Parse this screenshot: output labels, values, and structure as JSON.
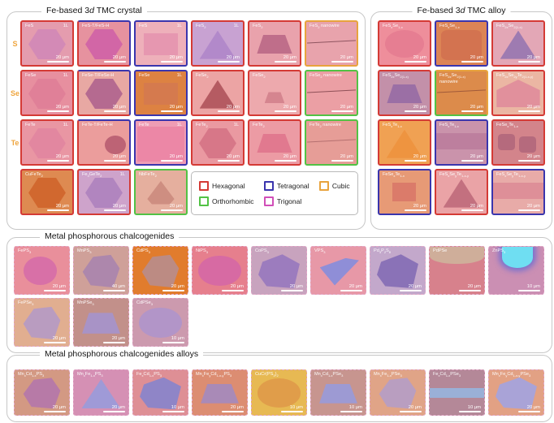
{
  "legend": {
    "items": [
      {
        "label": "Hexagonal",
        "color": "#d43a35"
      },
      {
        "label": "Tetragonal",
        "color": "#3a35ad"
      },
      {
        "label": "Cubic",
        "color": "#e8a33d"
      },
      {
        "label": "Orthorhombic",
        "color": "#52c245"
      },
      {
        "label": "Trigonal",
        "color": "#d14fb8"
      }
    ]
  },
  "panels": [
    {
      "id": "crystal",
      "title": "Fe-based 3*d* TMC crystal",
      "row_labels": [
        "S",
        "Se",
        "Te"
      ],
      "row_label_color": "#efa63f",
      "tiles": [
        {
          "label": "FeS",
          "layer_tag": "1L",
          "scale": "20 μm",
          "border": "hexagonal",
          "bg_color": "#e49cae",
          "flake_color": "#d38ab6",
          "flake_shape": "hexagon"
        },
        {
          "label": "FeS-T/FeS-H",
          "scale": "20 μm",
          "border": "tetra-hex",
          "bg_color": "#e6929f",
          "flake_color": "#d266a6",
          "flake_shape": "hexagon"
        },
        {
          "label": "FeS",
          "layer_tag": "1L",
          "scale": "20 μm",
          "border": "tetragonal",
          "bg_color": "#eeb0ba",
          "flake_color": "#e697b0",
          "flake_shape": "rect"
        },
        {
          "label": "FeS_{2}",
          "layer_tag": "1L",
          "scale": "20 μm",
          "border": "hexagonal",
          "bg_color": "#c8a2d2",
          "flake_color": "#b289ca",
          "flake_shape": "triangle"
        },
        {
          "label": "FeS_{2}",
          "scale": "20 μm",
          "border": "hexagonal",
          "bg_color": "#e9a2ac",
          "flake_color": "#bf6e8a",
          "flake_shape": "trapezoid"
        },
        {
          "label": "FeS_{2} nanowire",
          "scale": "20 μm",
          "border": "cubic",
          "bg_color": "#e8a3ac",
          "flake_color": "#8f5560",
          "flake_shape": "wire"
        },
        {
          "label": "FeSe",
          "layer_tag": "1L",
          "scale": "20 μm",
          "border": "hexagonal",
          "bg_color": "#e78f9f",
          "flake_color": "#e08098",
          "flake_shape": "hexagon"
        },
        {
          "label": "FeSe-T/FeSe-H",
          "scale": "20 μm",
          "border": "tetra-hex",
          "bg_color": "#e8a8a3",
          "flake_color": "#b56a90",
          "flake_shape": "hexagon"
        },
        {
          "label": "FeSe",
          "layer_tag": "1L",
          "scale": "20 μm",
          "border": "tetragonal",
          "bg_color": "#dd8242",
          "flake_color": "#d57a4e",
          "flake_shape": "rect"
        },
        {
          "label": "FeSe_{2}",
          "scale": "20 μm",
          "border": "hexagonal",
          "bg_color": "#eca4a4",
          "flake_color": "#b55b62",
          "flake_shape": "triangle"
        },
        {
          "label": "FeSe_{2}",
          "scale": "20 μm",
          "border": "hexagonal",
          "bg_color": "#eda9ad",
          "flake_color": "#d5858f",
          "flake_shape": "trapezoid-sm"
        },
        {
          "label": "FeSe_{2} nanowire",
          "scale": "20 μm",
          "border": "orthorhombic",
          "bg_color": "#eb9fa4",
          "flake_color": "#8f5058",
          "flake_shape": "wire"
        },
        {
          "label": "FeTe",
          "layer_tag": "1L",
          "scale": "20 μm",
          "border": "hexagonal",
          "bg_color": "#e996a3",
          "flake_color": "#e287a0",
          "flake_shape": "hexagon"
        },
        {
          "label": "FeTe-T/FeTe-H",
          "scale": "20 μm",
          "border": "tetra-hex",
          "bg_color": "#eb9d9c",
          "flake_color": "#bd6375",
          "flake_shape": "circle-right"
        },
        {
          "label": "FeTe",
          "layer_tag": "1L",
          "scale": "20 μm",
          "border": "tetragonal",
          "bg_color": "#ef9db4",
          "flake_color": "#ec87a6",
          "flake_shape": "rect-lg"
        },
        {
          "label": "FeTe_{2}",
          "layer_tag": "1L",
          "scale": "20 μm",
          "border": "hexagonal",
          "bg_color": "#ea99a1",
          "flake_color": "#d77788",
          "flake_shape": "hexagon"
        },
        {
          "label": "FeTe_{2}",
          "scale": "20 μm",
          "border": "hexagonal",
          "bg_color": "#ec9ba4",
          "flake_color": "#e1798f",
          "flake_shape": "trapezoid"
        },
        {
          "label": "FeTe_{2} nanowire",
          "scale": "20 μm",
          "border": "orthorhombic",
          "bg_color": "#e69d97",
          "flake_color": "#b57070",
          "flake_shape": "wire"
        },
        {
          "label": "CuFeTe_{2}",
          "scale": "20 μm",
          "border": "hexagonal",
          "bg_color": "#de8a51",
          "flake_color": "#d1682f",
          "flake_shape": "hexagon"
        },
        {
          "label": "Fe_{3}GeTe_{2}",
          "layer_tag": "1L",
          "scale": "20 μm",
          "border": "hexagonal",
          "bg_color": "#cea3cb",
          "flake_color": "#b185bf",
          "flake_shape": "hexagon"
        },
        {
          "label": "NbFeTe_{2}",
          "scale": "20 μm",
          "border": "orthorhombic",
          "bg_color": "#e5af9e",
          "flake_color": "#ce8e81",
          "flake_shape": "triangle-round"
        }
      ]
    },
    {
      "id": "alloy",
      "title": "Fe-based 3*d* TMC alloy",
      "tiles": [
        {
          "label": "FeS_{x}Se_{1-x}",
          "scale": "20 μm",
          "border": "hexagonal",
          "bg_color": "#ee8e9b",
          "flake_color": "#e67e92",
          "flake_shape": "blob"
        },
        {
          "label": "FeS_{x}Se_{1-x}",
          "scale": "20 μm",
          "border": "tetragonal",
          "bg_color": "#dc8455",
          "flake_color": "#d37350",
          "flake_shape": "round-rect"
        },
        {
          "label": "FeS_{2x}Se_{2(1-x)}",
          "scale": "20 μm",
          "border": "hexagonal",
          "bg_color": "#e3a7b6",
          "flake_color": "#9e7bb1",
          "flake_shape": "triangle"
        },
        {
          "label": "FeS_{2x}Se_{2(1-x)}",
          "scale": "20 μm",
          "border": "hexagonal",
          "bg_color": "#c390a9",
          "flake_color": "#9b6fa5",
          "flake_shape": "trapezoid"
        },
        {
          "label": "FeS_{2x}Se_{2(1-x)} nanowire",
          "scale": "20 μm",
          "border": "cubic-ortho",
          "bg_color": "#dc8b4b",
          "flake_color": "#a05a3a",
          "flake_shape": "wire"
        },
        {
          "label": "FeS_{2x}Se_{2y}Te_{2(1-x-y)}",
          "scale": "20 μm",
          "border": "hexagonal",
          "bg_color": "#ebb6a3",
          "flake_color": "#e1909c",
          "flake_shape": "pentagon"
        },
        {
          "label": "FeS_{x}Te_{1-x}",
          "scale": "20 μm",
          "border": "hexagonal",
          "bg_color": "#f0a153",
          "flake_color": "#ee9440",
          "flake_shape": "triangle"
        },
        {
          "label": "FeS_{x}Te_{1-x}",
          "scale": "20 μm",
          "border": "tetragonal",
          "bg_color": "#ca93ab",
          "flake_color": "#bd7f9e",
          "flake_shape": "band"
        },
        {
          "label": "FeSe_{x}Te_{1-x}",
          "scale": "20 μm",
          "border": "hexagonal",
          "bg_color": "#d3848b",
          "flake_color": "#b56a7d",
          "flake_shape": "two-hex"
        },
        {
          "label": "FeSe_{x}Te_{1-x}",
          "scale": "20 μm",
          "border": "tetragonal",
          "bg_color": "#e79a76",
          "flake_color": "#db7b6a",
          "flake_shape": "square"
        },
        {
          "label": "FeS_{x}Se_{y}Te_{1-x-y}",
          "scale": "20 μm",
          "border": "hexagonal",
          "bg_color": "#eaa3a6",
          "flake_color": "#c3707f",
          "flake_shape": "triangle"
        },
        {
          "label": "FeS_{x}Se_{y}Te_{1-x-y}",
          "scale": "20 μm",
          "border": "tetragonal",
          "bg_color": "#e8aba8",
          "flake_color": "#de8f98",
          "flake_shape": "band"
        }
      ]
    },
    {
      "id": "mpc",
      "title": "Metal phosphorous chalcogenides",
      "tiles": [
        {
          "label": "FePS_{3}",
          "scale": "20 μm",
          "border": "trigonal",
          "bg_color": "#e98f9b",
          "flake_color": "#d870a7",
          "flake_shape": "circle"
        },
        {
          "label": "MnPS_{3}",
          "scale": "40 μm",
          "border": "trigonal",
          "bg_color": "#cfa099",
          "flake_color": "#ad87ac",
          "flake_shape": "flake"
        },
        {
          "label": "CdPS_{3}",
          "scale": "20 μm",
          "border": "trigonal",
          "bg_color": "#e17c2d",
          "flake_color": "#bc8b83",
          "flake_shape": "flake"
        },
        {
          "label": "NiPS_{3}",
          "scale": "20 μm",
          "border": "trigonal",
          "bg_color": "#e67f8d",
          "flake_color": "#d76aa3",
          "flake_shape": "blob"
        },
        {
          "label": "CoPS_{3}",
          "scale": "20 μm",
          "border": "trigonal",
          "bg_color": "#c8a3be",
          "flake_color": "#9c7cbe",
          "flake_shape": "flake2"
        },
        {
          "label": "VPS_{3}",
          "scale": "20 μm",
          "border": "trigonal",
          "bg_color": "#e798a7",
          "flake_color": "#8f8ed7",
          "flake_shape": "shard"
        },
        {
          "label": "Pd_{3}P_{2}S_{8}",
          "scale": "20 μm",
          "border": "trigonal",
          "bg_color": "#c3a8cb",
          "flake_color": "#8a72b7",
          "flake_shape": "flake2"
        },
        {
          "label": "PdPSe",
          "scale": "20 μm",
          "border": "trigonal",
          "bg_color": "#d7818c",
          "flake_color": "#cfae9a",
          "flake_shape": "cap"
        },
        {
          "label": "ZnPS_{3}",
          "scale": "10 μm",
          "border": "trigonal",
          "bg_color": "#cb8fb3",
          "flake_color": "#6fdef2",
          "flake_shape": "glow"
        },
        {
          "label": "FePSe_{3}",
          "scale": "20 μm",
          "border": "trigonal",
          "bg_color": "#e1ae90",
          "flake_color": "#b99cc0",
          "flake_shape": "flake"
        },
        {
          "label": "MnPSe_{3}",
          "scale": "20 μm",
          "border": "trigonal",
          "bg_color": "#c2908a",
          "flake_color": "#a893c6",
          "flake_shape": "trapezoid"
        },
        {
          "label": "CdPSe_{3}",
          "scale": "10 μm",
          "border": "trigonal",
          "bg_color": "#cc9aae",
          "flake_color": "#b295c8",
          "flake_shape": "blob"
        }
      ]
    },
    {
      "id": "mpca",
      "title": "Metal phosphorous chalcogenides alloys",
      "tiles": [
        {
          "label": "Mn_{x}Cd_{1-x}PS_{3}",
          "scale": "20 μm",
          "border": "trigonal",
          "bg_color": "#d39983",
          "flake_color": "#b77aa7",
          "flake_shape": "flake"
        },
        {
          "label": "Mn_{x}Fe_{1-x}PS_{3}",
          "scale": "20 μm",
          "border": "trigonal",
          "bg_color": "#d590b4",
          "flake_color": "#9f9ad7",
          "flake_shape": "triangle"
        },
        {
          "label": "Fe_{x}Cd_{1-x}PS_{3}",
          "scale": "10 μm",
          "border": "trigonal",
          "bg_color": "#de8f95",
          "flake_color": "#8f85c7",
          "flake_shape": "flake2"
        },
        {
          "label": "Mn_{x}Fe_{y}Cd_{1-x-y}PS_{3}",
          "scale": "20 μm",
          "border": "trigonal",
          "bg_color": "#dc8d72",
          "flake_color": "#a98ab7",
          "flake_shape": "trapezoid"
        },
        {
          "label": "CuCr(PS_{3})_{2}",
          "scale": "10 μm",
          "border": "trigonal",
          "bg_color": "#e7b953",
          "flake_color": "#e09d4a",
          "flake_shape": "blob"
        },
        {
          "label": "Mn_{x}Cd_{1-x}PSe_{3}",
          "scale": "10 μm",
          "border": "trigonal",
          "bg_color": "#c7958f",
          "flake_color": "#9d9ad3",
          "flake_shape": "trapezoid"
        },
        {
          "label": "Mn_{x}Fe_{1-x}PSe_{3}",
          "scale": "20 μm",
          "border": "trigonal",
          "bg_color": "#e0a487",
          "flake_color": "#b99ec0",
          "flake_shape": "flake"
        },
        {
          "label": "Fe_{x}Cd_{1-x}PSe_{3}",
          "scale": "10 μm",
          "border": "trigonal",
          "bg_color": "#b48898",
          "flake_color": "#9ab0d7",
          "flake_shape": "band-low"
        },
        {
          "label": "Mn_{x}Fe_{y}Cd_{1-x-y}PSe_{3}",
          "scale": "20 μm",
          "border": "trigonal",
          "bg_color": "#e2a184",
          "flake_color": "#a9a3d7",
          "flake_shape": "flake2"
        }
      ]
    }
  ]
}
